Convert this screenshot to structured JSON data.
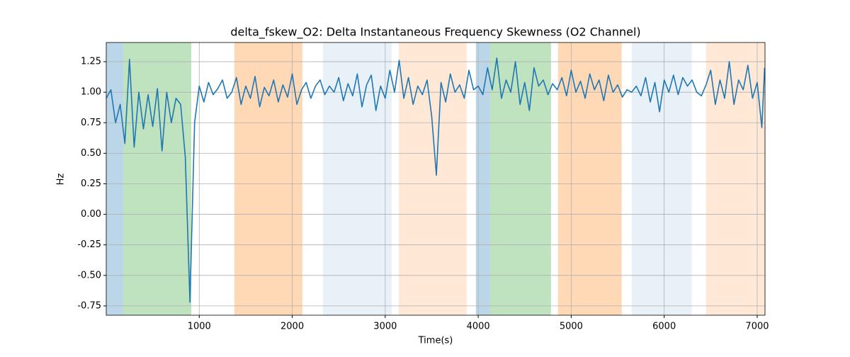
{
  "chart_data": {
    "type": "line",
    "title": "delta_fskew_O2: Delta Instantaneous Frequency Skewness (O2 Channel)",
    "xlabel": "Time(s)",
    "ylabel": "Hz",
    "xlim": [
      0,
      7084
    ],
    "ylim": [
      -0.826,
      1.407
    ],
    "xticks": [
      1000,
      2000,
      3000,
      4000,
      5000,
      6000,
      7000
    ],
    "yticks": [
      -0.75,
      {
        "value": -0.5,
        "label": "-0.50"
      },
      -0.25,
      {
        "value": 0,
        "label": "0.00"
      },
      0.25,
      {
        "value": 0.5,
        "label": "0.50"
      },
      0.75,
      {
        "value": 1,
        "label": "1.00"
      },
      1.25
    ],
    "grid": true,
    "spans": [
      {
        "x0": 0,
        "x1": 183,
        "color": "#1f77b4",
        "opacity": 0.3
      },
      {
        "x0": 183,
        "x1": 914,
        "color": "#2ca02c",
        "opacity": 0.3
      },
      {
        "x0": 1378,
        "x1": 2109,
        "color": "#ff7f0e",
        "opacity": 0.3
      },
      {
        "x0": 2330,
        "x1": 3069,
        "color": "#1f77b4",
        "opacity": 0.1
      },
      {
        "x0": 3145,
        "x1": 3876,
        "color": "#ff7f0e",
        "opacity": 0.17
      },
      {
        "x0": 3975,
        "x1": 4127,
        "color": "#1f77b4",
        "opacity": 0.3
      },
      {
        "x0": 4127,
        "x1": 4782,
        "color": "#2ca02c",
        "opacity": 0.3
      },
      {
        "x0": 4858,
        "x1": 5543,
        "color": "#ff7f0e",
        "opacity": 0.3
      },
      {
        "x0": 5650,
        "x1": 6297,
        "color": "#1f77b4",
        "opacity": 0.1
      },
      {
        "x0": 6450,
        "x1": 7084,
        "color": "#ff7f0e",
        "opacity": 0.17
      }
    ],
    "x": [
      0,
      50,
      100,
      150,
      200,
      250,
      300,
      350,
      400,
      450,
      500,
      550,
      600,
      650,
      700,
      750,
      800,
      850,
      900,
      950,
      1000,
      1050,
      1100,
      1150,
      1200,
      1250,
      1300,
      1350,
      1400,
      1450,
      1500,
      1550,
      1600,
      1650,
      1700,
      1750,
      1800,
      1850,
      1900,
      1950,
      2000,
      2050,
      2100,
      2150,
      2200,
      2250,
      2300,
      2350,
      2400,
      2450,
      2500,
      2550,
      2600,
      2650,
      2700,
      2750,
      2800,
      2850,
      2900,
      2950,
      3000,
      3050,
      3100,
      3150,
      3200,
      3250,
      3300,
      3350,
      3400,
      3450,
      3500,
      3550,
      3600,
      3650,
      3700,
      3750,
      3800,
      3850,
      3900,
      3950,
      4000,
      4050,
      4100,
      4150,
      4200,
      4250,
      4300,
      4350,
      4400,
      4450,
      4500,
      4550,
      4600,
      4650,
      4700,
      4750,
      4800,
      4850,
      4900,
      4950,
      5000,
      5050,
      5100,
      5150,
      5200,
      5250,
      5300,
      5350,
      5400,
      5450,
      5500,
      5550,
      5600,
      5650,
      5700,
      5750,
      5800,
      5850,
      5900,
      5950,
      6000,
      6050,
      6100,
      6150,
      6200,
      6250,
      6300,
      6350,
      6400,
      6450,
      6500,
      6550,
      6600,
      6650,
      6700,
      6750,
      6800,
      6850,
      6900,
      6950,
      7000,
      7050,
      7080
    ],
    "series": [
      {
        "color": "#1f77b4",
        "values": [
          0.95,
          1.02,
          0.75,
          0.9,
          0.58,
          1.27,
          0.55,
          1.0,
          0.7,
          0.98,
          0.72,
          1.03,
          0.52,
          1.0,
          0.75,
          0.95,
          0.9,
          0.47,
          -0.72,
          0.75,
          1.05,
          0.92,
          1.08,
          0.98,
          1.03,
          1.1,
          0.95,
          1.0,
          1.12,
          0.9,
          1.05,
          0.95,
          1.13,
          0.88,
          1.04,
          0.97,
          1.1,
          0.92,
          1.06,
          0.96,
          1.15,
          0.9,
          1.02,
          1.08,
          0.95,
          1.05,
          1.1,
          0.98,
          1.05,
          1.0,
          1.12,
          0.93,
          1.07,
          0.97,
          1.15,
          0.88,
          1.06,
          1.14,
          0.85,
          1.05,
          0.95,
          1.18,
          1.0,
          1.26,
          0.95,
          1.12,
          0.9,
          1.05,
          0.98,
          1.1,
          0.8,
          0.32,
          1.08,
          0.92,
          1.15,
          1.0,
          1.06,
          0.95,
          1.18,
          1.02,
          1.05,
          0.98,
          1.2,
          1.02,
          1.28,
          0.95,
          1.1,
          1.0,
          1.25,
          0.9,
          1.08,
          0.85,
          1.2,
          1.05,
          1.1,
          0.98,
          1.07,
          1.02,
          1.12,
          0.97,
          1.18,
          1.0,
          1.09,
          0.95,
          1.15,
          1.02,
          1.1,
          0.93,
          1.14,
          1.0,
          1.06,
          0.96,
          1.02,
          1.0,
          1.05,
          0.97,
          1.12,
          0.92,
          1.08,
          0.84,
          1.1,
          1.0,
          1.14,
          0.98,
          1.12,
          1.05,
          1.1,
          1.0,
          0.97,
          1.06,
          1.18,
          0.9,
          1.1,
          0.95,
          1.25,
          0.9,
          1.1,
          1.02,
          1.22,
          0.95,
          1.08,
          0.71,
          1.2
        ]
      }
    ]
  }
}
